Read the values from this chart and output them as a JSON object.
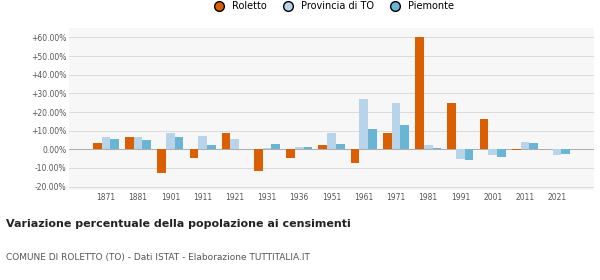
{
  "years": [
    1871,
    1881,
    1901,
    1911,
    1921,
    1931,
    1936,
    1951,
    1961,
    1971,
    1981,
    1991,
    2001,
    2011,
    2021
  ],
  "roletto": [
    3.5,
    6.5,
    -12.5,
    -4.5,
    9.0,
    -11.5,
    -4.5,
    2.5,
    -7.5,
    8.5,
    60.0,
    25.0,
    16.0,
    -0.5,
    null
  ],
  "provincia_to": [
    6.5,
    6.5,
    8.5,
    7.0,
    5.5,
    0.5,
    1.0,
    9.0,
    27.0,
    25.0,
    2.5,
    -5.0,
    -3.0,
    4.0,
    -3.0
  ],
  "piemonte": [
    5.5,
    5.0,
    6.5,
    2.5,
    0.0,
    3.0,
    1.5,
    3.0,
    11.0,
    13.0,
    0.5,
    -5.5,
    -4.0,
    3.5,
    -2.5
  ],
  "color_roletto": "#d95f02",
  "color_provincia": "#b8d4ea",
  "color_piemonte": "#6ab4d4",
  "title": "Variazione percentuale della popolazione ai censimenti",
  "subtitle": "COMUNE DI ROLETTO (TO) - Dati ISTAT - Elaborazione TUTTITALIA.IT",
  "ylim": [
    -22,
    65
  ],
  "yticks": [
    -20,
    -10,
    0,
    10,
    20,
    30,
    40,
    50,
    60
  ],
  "ytick_labels": [
    "-20.00%",
    "-10.00%",
    "0.00%",
    "+10.00%",
    "+20.00%",
    "+30.00%",
    "+40.00%",
    "+50.00%",
    "+60.00%"
  ],
  "bar_width": 0.27,
  "bg_color": "#f7f7f7"
}
